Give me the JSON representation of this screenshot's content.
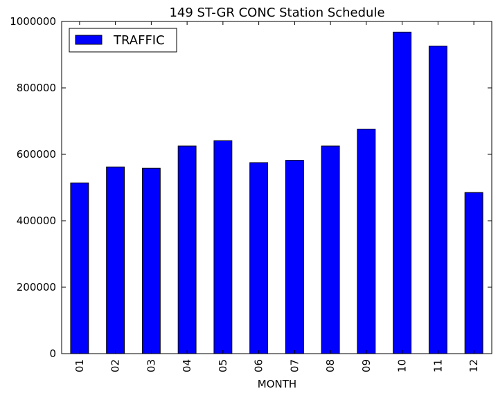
{
  "chart_data": {
    "type": "bar",
    "title": "149 ST-GR CONC Station Schedule",
    "xlabel": "MONTH",
    "ylabel": "",
    "categories": [
      "01",
      "02",
      "03",
      "04",
      "05",
      "06",
      "07",
      "08",
      "09",
      "10",
      "11",
      "12"
    ],
    "series": [
      {
        "name": "TRAFFIC",
        "color": "#0000ff",
        "values": [
          514000,
          562000,
          558000,
          625000,
          641000,
          575000,
          582000,
          625000,
          676000,
          968000,
          926000,
          485000
        ]
      }
    ],
    "ylim": [
      0,
      1000000
    ],
    "yticks": [
      0,
      200000,
      400000,
      600000,
      800000,
      1000000
    ],
    "ytick_labels": [
      "0",
      "200000",
      "400000",
      "600000",
      "800000",
      "1000000"
    ],
    "grid": false,
    "legend_position": "top-left"
  }
}
